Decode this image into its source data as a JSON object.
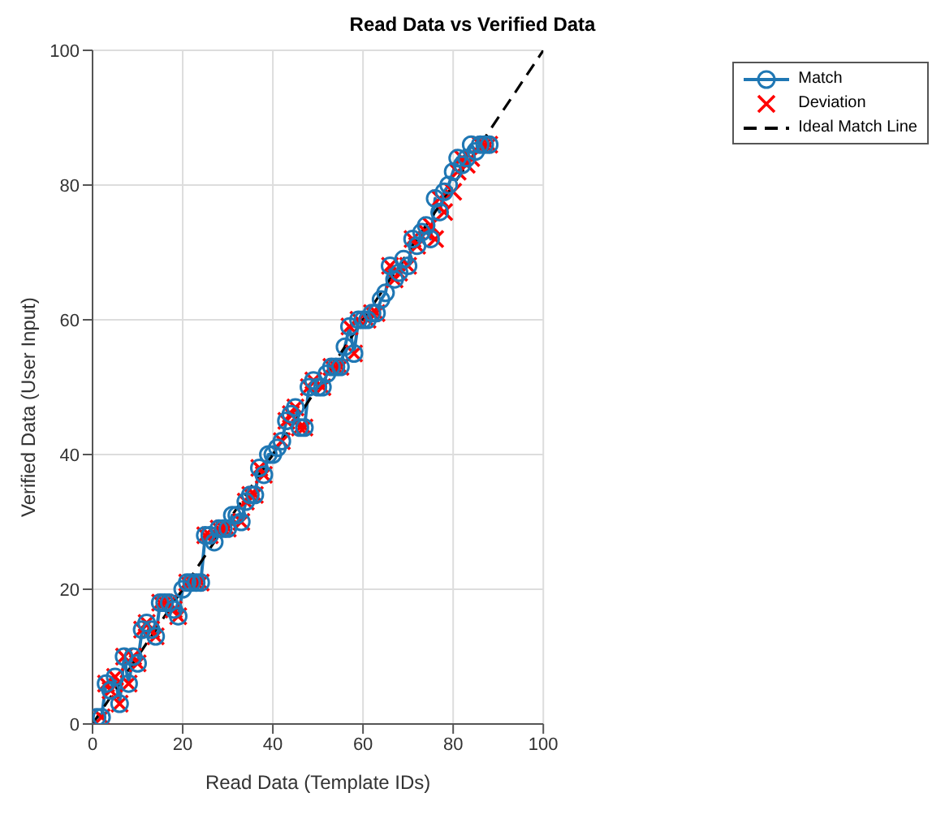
{
  "chart_data": {
    "type": "line",
    "title": "Read Data vs Verified Data",
    "xlabel": "Read Data (Template IDs)",
    "ylabel": "Verified Data (User Input)",
    "xlim": [
      0,
      100
    ],
    "xticks": [
      0,
      20,
      40,
      60,
      80,
      100
    ],
    "ylim": [
      0,
      100
    ],
    "yticks": [
      0,
      20,
      40,
      60,
      80,
      100
    ],
    "grid": true,
    "legend": "top right",
    "series": [
      {
        "name": "Match",
        "type": "line",
        "marker": "circle",
        "line_style": "solid",
        "color": "#1f77b4",
        "x": [
          1,
          2,
          3,
          4,
          5,
          6,
          7,
          8,
          9,
          10,
          11,
          12,
          13,
          14,
          15,
          16,
          17,
          18,
          19,
          20,
          21,
          22,
          23,
          24,
          25,
          26,
          27,
          28,
          29,
          30,
          31,
          32,
          33,
          34,
          35,
          36,
          37,
          38,
          39,
          40,
          41,
          42,
          43,
          44,
          45,
          46,
          47,
          48,
          49,
          50,
          51,
          52,
          53,
          54,
          55,
          56,
          57,
          58,
          59,
          60,
          61,
          62,
          63,
          64,
          65,
          66,
          67,
          68,
          69,
          70,
          71,
          72,
          73,
          74,
          75,
          76,
          77,
          78,
          79,
          80,
          81,
          82,
          83,
          84,
          85,
          86,
          87,
          88
        ],
        "values": [
          1,
          1,
          6,
          5,
          7,
          3,
          10,
          6,
          10,
          9,
          14,
          15,
          14,
          13,
          18,
          18,
          18,
          17,
          16,
          20,
          21,
          21,
          21,
          21,
          28,
          28,
          27,
          29,
          29,
          29,
          31,
          31,
          30,
          33,
          34,
          34,
          38,
          37,
          40,
          40,
          41,
          42,
          45,
          46,
          47,
          44,
          44,
          50,
          51,
          50,
          50,
          52,
          53,
          53,
          53,
          56,
          59,
          55,
          60,
          60,
          60,
          61,
          61,
          63,
          64,
          68,
          66,
          67,
          69,
          68,
          72,
          71,
          73,
          74,
          72,
          78,
          76,
          79,
          80,
          82,
          84,
          83,
          84,
          86,
          85,
          86,
          86,
          86
        ]
      },
      {
        "name": "Deviation",
        "type": "scatter",
        "marker": "cross",
        "color": "#ff0000",
        "x": [
          2,
          3,
          4,
          5,
          6,
          7,
          8,
          9,
          10,
          11,
          12,
          13,
          14,
          15,
          16,
          17,
          18,
          19,
          21,
          22,
          23,
          24,
          25,
          26,
          28,
          29,
          30,
          33,
          34,
          35,
          36,
          37,
          38,
          42,
          43,
          44,
          45,
          46,
          47,
          48,
          49,
          51,
          53,
          54,
          55,
          57,
          58,
          59,
          61,
          62,
          63,
          66,
          67,
          68,
          70,
          71,
          72,
          74,
          75,
          76,
          77,
          78,
          80,
          81,
          82,
          83,
          84,
          86,
          87,
          88
        ],
        "values": [
          1,
          6,
          5,
          7,
          3,
          10,
          6,
          10,
          9,
          14,
          15,
          14,
          13,
          18,
          18,
          18,
          17,
          16,
          21,
          21,
          21,
          21,
          28,
          28,
          29,
          29,
          29,
          30,
          33,
          34,
          34,
          38,
          37,
          42,
          45,
          46,
          47,
          44,
          44,
          50,
          51,
          50,
          53,
          53,
          53,
          59,
          55,
          60,
          60,
          61,
          61,
          68,
          66,
          67,
          68,
          72,
          71,
          73,
          74,
          72,
          78,
          76,
          79,
          82,
          84,
          83,
          84,
          86,
          86,
          86
        ]
      },
      {
        "name": "Ideal Match Line",
        "type": "line",
        "marker": "none",
        "line_style": "dashed",
        "color": "#000000",
        "x": [
          0,
          100
        ],
        "values": [
          0,
          100
        ]
      }
    ]
  }
}
